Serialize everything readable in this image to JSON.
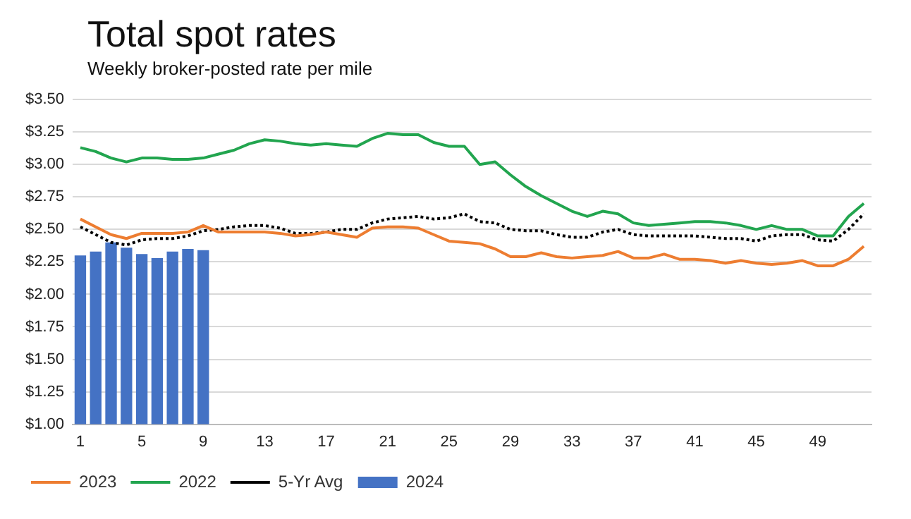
{
  "chart_data": {
    "type": "bar",
    "title": "Total spot rates",
    "subtitle": "Weekly broker-posted rate per mile",
    "categories": [
      "1",
      null,
      null,
      null,
      "5",
      null,
      null,
      null,
      "9",
      null,
      null,
      null,
      "13",
      null,
      null,
      null,
      "17",
      null,
      null,
      null,
      "21",
      null,
      null,
      null,
      "25",
      null,
      null,
      null,
      "29",
      null,
      null,
      null,
      "33",
      null,
      null,
      null,
      "37",
      null,
      null,
      null,
      "41",
      null,
      null,
      null,
      "45",
      null,
      null,
      null,
      "49",
      null,
      null,
      null
    ],
    "series": [
      {
        "name": "2024",
        "color": "#4472c4",
        "values": [
          2.3,
          2.33,
          2.4,
          2.36,
          2.31,
          2.28,
          2.33,
          2.35,
          2.34,
          null,
          null,
          null,
          null,
          null,
          null,
          null,
          null,
          null,
          null,
          null,
          null,
          null,
          null,
          null,
          null,
          null,
          null,
          null,
          null,
          null,
          null,
          null,
          null,
          null,
          null,
          null,
          null,
          null,
          null,
          null,
          null,
          null,
          null,
          null,
          null,
          null,
          null,
          null,
          null,
          null,
          null,
          null
        ]
      },
      {
        "name": "2023",
        "type": "line",
        "color": "#ed7d31",
        "line_style": "solid",
        "values": [
          2.58,
          2.52,
          2.46,
          2.43,
          2.47,
          2.47,
          2.47,
          2.48,
          2.53,
          2.48,
          2.48,
          2.48,
          2.48,
          2.47,
          2.45,
          2.46,
          2.48,
          2.46,
          2.44,
          2.51,
          2.52,
          2.52,
          2.51,
          2.46,
          2.41,
          2.4,
          2.39,
          2.35,
          2.29,
          2.29,
          2.32,
          2.29,
          2.28,
          2.29,
          2.3,
          2.33,
          2.28,
          2.28,
          2.31,
          2.27,
          2.27,
          2.26,
          2.24,
          2.26,
          2.24,
          2.23,
          2.24,
          2.26,
          2.22,
          2.22,
          2.27,
          2.37
        ]
      },
      {
        "name": "2022",
        "type": "line",
        "color": "#22a54f",
        "line_style": "solid",
        "values": [
          3.13,
          3.1,
          3.05,
          3.02,
          3.05,
          3.05,
          3.04,
          3.04,
          3.05,
          3.08,
          3.11,
          3.16,
          3.19,
          3.18,
          3.16,
          3.15,
          3.16,
          3.15,
          3.14,
          3.2,
          3.24,
          3.23,
          3.23,
          3.17,
          3.14,
          3.14,
          3.0,
          3.02,
          2.92,
          2.83,
          2.76,
          2.7,
          2.64,
          2.6,
          2.64,
          2.62,
          2.55,
          2.53,
          2.54,
          2.55,
          2.56,
          2.56,
          2.55,
          2.53,
          2.5,
          2.53,
          2.5,
          2.5,
          2.45,
          2.45,
          2.6,
          2.7
        ]
      },
      {
        "name": "5-Yr Avg",
        "type": "line",
        "color": "#000000",
        "line_style": "dotted",
        "values": [
          2.52,
          2.46,
          2.4,
          2.38,
          2.42,
          2.43,
          2.43,
          2.45,
          2.49,
          2.5,
          2.52,
          2.53,
          2.53,
          2.51,
          2.47,
          2.47,
          2.48,
          2.5,
          2.5,
          2.55,
          2.58,
          2.59,
          2.6,
          2.58,
          2.59,
          2.62,
          2.56,
          2.55,
          2.5,
          2.49,
          2.49,
          2.46,
          2.44,
          2.44,
          2.48,
          2.5,
          2.46,
          2.45,
          2.45,
          2.45,
          2.45,
          2.44,
          2.43,
          2.43,
          2.41,
          2.45,
          2.46,
          2.46,
          2.42,
          2.41,
          2.5,
          2.62
        ]
      }
    ],
    "ylim": [
      1.0,
      3.5
    ],
    "yticks": [
      {
        "value": 1.0,
        "label": "$1.00"
      },
      {
        "value": 1.25,
        "label": "$1.25"
      },
      {
        "value": 1.5,
        "label": "$1.50"
      },
      {
        "value": 1.75,
        "label": "$1.75"
      },
      {
        "value": 2.0,
        "label": "$2.00"
      },
      {
        "value": 2.25,
        "label": "$2.25"
      },
      {
        "value": 2.5,
        "label": "$2.50"
      },
      {
        "value": 2.75,
        "label": "$2.75"
      },
      {
        "value": 3.0,
        "label": "$3.00"
      },
      {
        "value": 3.25,
        "label": "$3.25"
      },
      {
        "value": 3.5,
        "label": "$3.50"
      }
    ],
    "grid": "y",
    "legend": "bottom",
    "marker": "none"
  }
}
